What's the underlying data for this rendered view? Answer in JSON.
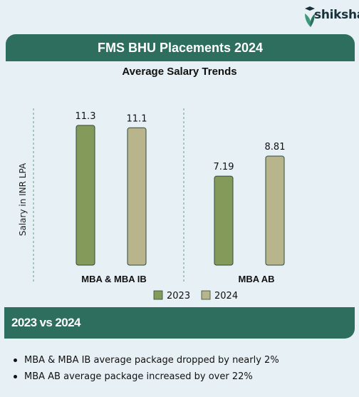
{
  "brand": {
    "name": "shiksha",
    "colors": {
      "accent": "#2e6e5f",
      "logo_green": "#3a9a7a"
    }
  },
  "page_title": "FMS BHU Placements 2024",
  "chart_data": {
    "type": "bar",
    "title": "Average Salary Trends",
    "ylabel": "Salary in INR LPA",
    "xlabel": "",
    "categories": [
      "MBA & MBA IB",
      "MBA AB"
    ],
    "series": [
      {
        "name": "2023",
        "values": [
          11.3,
          7.19
        ],
        "color": "#849a5a"
      },
      {
        "name": "2024",
        "values": [
          11.1,
          8.81
        ],
        "color": "#b8b58c"
      }
    ],
    "data_labels": [
      [
        "11.3",
        "7.19"
      ],
      [
        "11.1",
        "8.81"
      ]
    ],
    "ylim": [
      0,
      12.5
    ],
    "grid": false,
    "legend": "bottom-right"
  },
  "comparison": {
    "heading": "2023 vs 2024",
    "bullets": [
      "MBA & MBA IB average package dropped by nearly 2%",
      "MBA AB average package increased by over 22%"
    ]
  }
}
